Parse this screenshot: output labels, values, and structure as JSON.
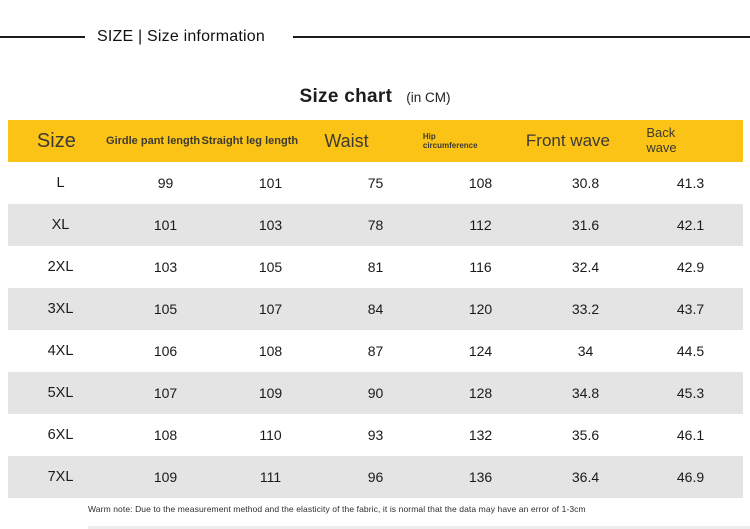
{
  "header": {
    "title": "SIZE | Size information"
  },
  "chart_title": {
    "main": "Size chart",
    "unit": "(in CM)"
  },
  "table": {
    "columns": [
      "Size",
      "Girdle pant length",
      "Straight leg length",
      "Waist",
      "Hip circumference",
      "Front wave",
      "Back wave"
    ],
    "rows": [
      [
        "L",
        "99",
        "101",
        "75",
        "108",
        "30.8",
        "41.3"
      ],
      [
        "XL",
        "101",
        "103",
        "78",
        "112",
        "31.6",
        "42.1"
      ],
      [
        "2XL",
        "103",
        "105",
        "81",
        "116",
        "32.4",
        "42.9"
      ],
      [
        "3XL",
        "105",
        "107",
        "84",
        "120",
        "33.2",
        "43.7"
      ],
      [
        "4XL",
        "106",
        "108",
        "87",
        "124",
        "34",
        "44.5"
      ],
      [
        "5XL",
        "107",
        "109",
        "90",
        "128",
        "34.8",
        "45.3"
      ],
      [
        "6XL",
        "108",
        "110",
        "93",
        "132",
        "35.6",
        "46.1"
      ],
      [
        "7XL",
        "109",
        "111",
        "96",
        "136",
        "36.4",
        "46.9"
      ]
    ]
  },
  "footer": {
    "note": "Warm note: Due to the measurement method and the elasticity of the fabric, it is normal that the data may have an error of 1-3cm"
  },
  "colors": {
    "header_bg": "#fbc315",
    "row_alt": "#e4e4e4",
    "rule": "#1c1c1c"
  }
}
